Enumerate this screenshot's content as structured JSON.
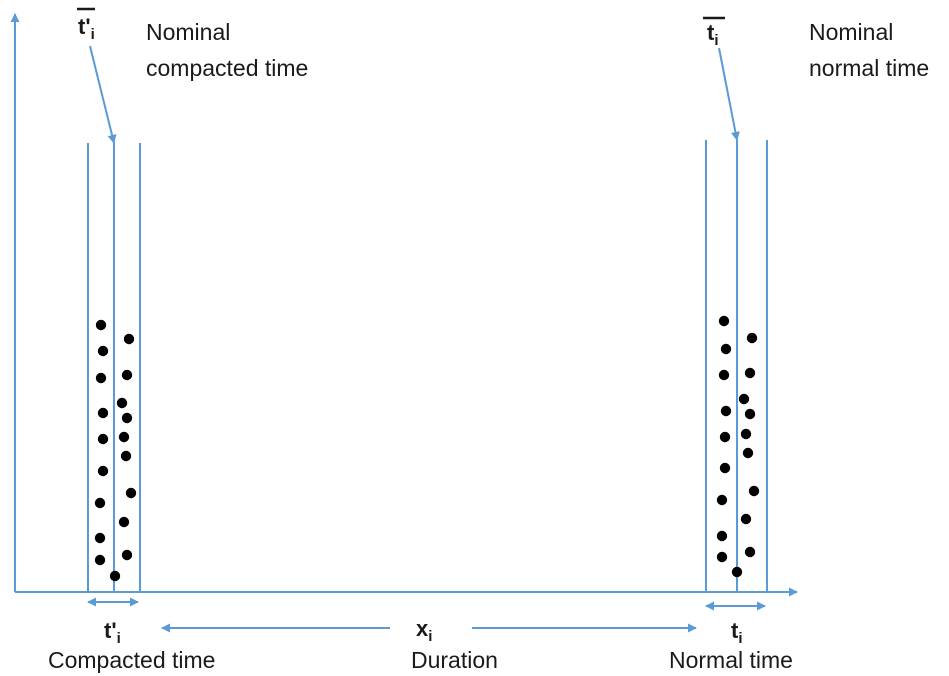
{
  "colors": {
    "line": "#5b9bd5",
    "dot": "#000000",
    "text": "#1a1a1a"
  },
  "left_column": {
    "symbol_top": {
      "base": "t'",
      "sub": "i"
    },
    "note_line1": "Nominal",
    "note_line2": "compacted time",
    "symbol_bottom": {
      "base": "t'",
      "sub": "i"
    },
    "caption": "Compacted time"
  },
  "right_column": {
    "symbol_top": {
      "base": "t",
      "sub": "i"
    },
    "note_line1": "Nominal",
    "note_line2": "normal time",
    "symbol_bottom": {
      "base": "t",
      "sub": "i"
    },
    "caption": "Normal time"
  },
  "duration": {
    "symbol": {
      "base": "x",
      "sub": "i"
    },
    "caption": "Duration"
  }
}
